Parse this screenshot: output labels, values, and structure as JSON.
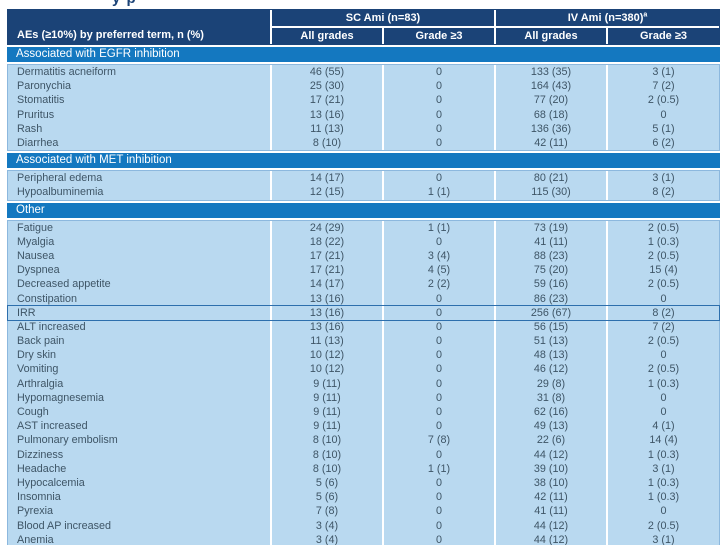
{
  "page": {
    "title_fragment": "y p"
  },
  "colors": {
    "header_navy": "#1b4377",
    "section_band_blue": "#1478c0",
    "row_background": "#b9d9f0",
    "highlight_border": "#2d6fad",
    "block_border": "#8cb8de",
    "data_text": "#3e5566",
    "header_text": "#ffffff"
  },
  "table": {
    "left_header": "AEs (≥10%) by preferred term, n (%)",
    "groups": [
      {
        "label": "SC Ami (n=83)",
        "sup": ""
      },
      {
        "label": "IV Ami (n=380)",
        "sup": "a"
      }
    ],
    "subheaders": [
      "All grades",
      "Grade ≥3",
      "All grades",
      "Grade ≥3"
    ],
    "sections": [
      {
        "header": "Associated with EGFR inhibition",
        "rows": [
          {
            "term": "Dermatitis acneiform",
            "values": [
              "46 (55)",
              "0",
              "133 (35)",
              "3 (1)"
            ]
          },
          {
            "term": "Paronychia",
            "values": [
              "25 (30)",
              "0",
              "164 (43)",
              "7 (2)"
            ]
          },
          {
            "term": "Stomatitis",
            "values": [
              "17 (21)",
              "0",
              "77 (20)",
              "2 (0.5)"
            ]
          },
          {
            "term": "Pruritus",
            "values": [
              "13 (16)",
              "0",
              "68 (18)",
              "0"
            ]
          },
          {
            "term": "Rash",
            "values": [
              "11 (13)",
              "0",
              "136 (36)",
              "5 (1)"
            ]
          },
          {
            "term": "Diarrhea",
            "values": [
              "8 (10)",
              "0",
              "42 (11)",
              "6 (2)"
            ]
          }
        ]
      },
      {
        "header": "Associated with MET inhibition",
        "rows": [
          {
            "term": "Peripheral edema",
            "values": [
              "14 (17)",
              "0",
              "80 (21)",
              "3 (1)"
            ]
          },
          {
            "term": "Hypoalbuminemia",
            "values": [
              "12 (15)",
              "1 (1)",
              "115 (30)",
              "8 (2)"
            ]
          }
        ]
      },
      {
        "header": "Other",
        "rows": [
          {
            "term": "Fatigue",
            "values": [
              "24 (29)",
              "1 (1)",
              "73 (19)",
              "2 (0.5)"
            ]
          },
          {
            "term": "Myalgia",
            "values": [
              "18 (22)",
              "0",
              "41 (11)",
              "1 (0.3)"
            ]
          },
          {
            "term": "Nausea",
            "values": [
              "17 (21)",
              "3 (4)",
              "88 (23)",
              "2 (0.5)"
            ]
          },
          {
            "term": "Dyspnea",
            "values": [
              "17 (21)",
              "4 (5)",
              "75 (20)",
              "15 (4)"
            ]
          },
          {
            "term": "Decreased appetite",
            "values": [
              "14 (17)",
              "2 (2)",
              "59 (16)",
              "2 (0.5)"
            ]
          },
          {
            "term": "Constipation",
            "values": [
              "13 (16)",
              "0",
              "86 (23)",
              "0"
            ]
          },
          {
            "term": "IRR",
            "values": [
              "13 (16)",
              "0",
              "256 (67)",
              "8 (2)"
            ],
            "highlight": true
          },
          {
            "term": "ALT increased",
            "values": [
              "13 (16)",
              "0",
              "56 (15)",
              "7 (2)"
            ]
          },
          {
            "term": "Back pain",
            "values": [
              "11 (13)",
              "0",
              "51 (13)",
              "2 (0.5)"
            ]
          },
          {
            "term": "Dry skin",
            "values": [
              "10 (12)",
              "0",
              "48 (13)",
              "0"
            ]
          },
          {
            "term": "Vomiting",
            "values": [
              "10 (12)",
              "0",
              "46 (12)",
              "2 (0.5)"
            ]
          },
          {
            "term": "Arthralgia",
            "values": [
              "9 (11)",
              "0",
              "29 (8)",
              "1 (0.3)"
            ]
          },
          {
            "term": "Hypomagnesemia",
            "values": [
              "9 (11)",
              "0",
              "31 (8)",
              "0"
            ]
          },
          {
            "term": "Cough",
            "values": [
              "9 (11)",
              "0",
              "62 (16)",
              "0"
            ]
          },
          {
            "term": "AST increased",
            "values": [
              "9 (11)",
              "0",
              "49 (13)",
              "4 (1)"
            ]
          },
          {
            "term": "Pulmonary embolism",
            "values": [
              "8 (10)",
              "7 (8)",
              "22 (6)",
              "14 (4)"
            ]
          },
          {
            "term": "Dizziness",
            "values": [
              "8 (10)",
              "0",
              "44 (12)",
              "1 (0.3)"
            ]
          },
          {
            "term": "Headache",
            "values": [
              "8 (10)",
              "1 (1)",
              "39 (10)",
              "3 (1)"
            ]
          },
          {
            "term": "Hypocalcemia",
            "values": [
              "5 (6)",
              "0",
              "38 (10)",
              "1 (0.3)"
            ]
          },
          {
            "term": "Insomnia",
            "values": [
              "5 (6)",
              "0",
              "42 (11)",
              "1 (0.3)"
            ]
          },
          {
            "term": "Pyrexia",
            "values": [
              "7 (8)",
              "0",
              "41 (11)",
              "0"
            ]
          },
          {
            "term": "Blood AP increased",
            "values": [
              "3 (4)",
              "0",
              "44 (12)",
              "2 (0.5)"
            ]
          },
          {
            "term": "Anemia",
            "values": [
              "3 (4)",
              "0",
              "44 (12)",
              "3 (1)"
            ]
          }
        ]
      }
    ]
  }
}
